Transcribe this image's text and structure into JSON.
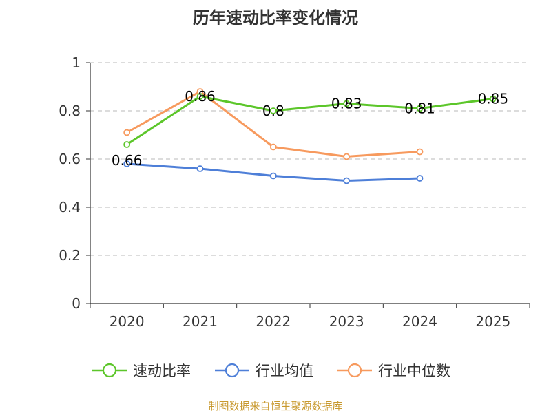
{
  "chart_data": {
    "type": "line",
    "title": "历年速动比率变化情况",
    "categories": [
      "2020",
      "2021",
      "2022",
      "2023",
      "2024",
      "2025"
    ],
    "ylim": [
      0,
      1
    ],
    "yticks": [
      0,
      0.2,
      0.4,
      0.6,
      0.8,
      1
    ],
    "ytick_labels": [
      "0",
      "0.2",
      "0.4",
      "0.6",
      "0.8",
      "1"
    ],
    "grid": true,
    "legend_position": "bottom",
    "series": [
      {
        "name": "速动比率",
        "color": "#5cc62a",
        "labeled": true,
        "values": [
          0.66,
          0.86,
          0.8,
          0.83,
          0.81,
          0.85
        ],
        "labels": [
          "0.66",
          "0.86",
          "0.8",
          "0.83",
          "0.81",
          "0.85"
        ]
      },
      {
        "name": "行业均值",
        "color": "#4e7fd8",
        "labeled": false,
        "values": [
          0.58,
          0.56,
          0.53,
          0.51,
          0.52,
          null
        ]
      },
      {
        "name": "行业中位数",
        "color": "#f79a5e",
        "labeled": false,
        "values": [
          0.71,
          0.88,
          0.65,
          0.61,
          0.63,
          null
        ]
      }
    ]
  },
  "source": {
    "text": "制图数据来自恒生聚源数据库",
    "color": "#c8992e"
  }
}
